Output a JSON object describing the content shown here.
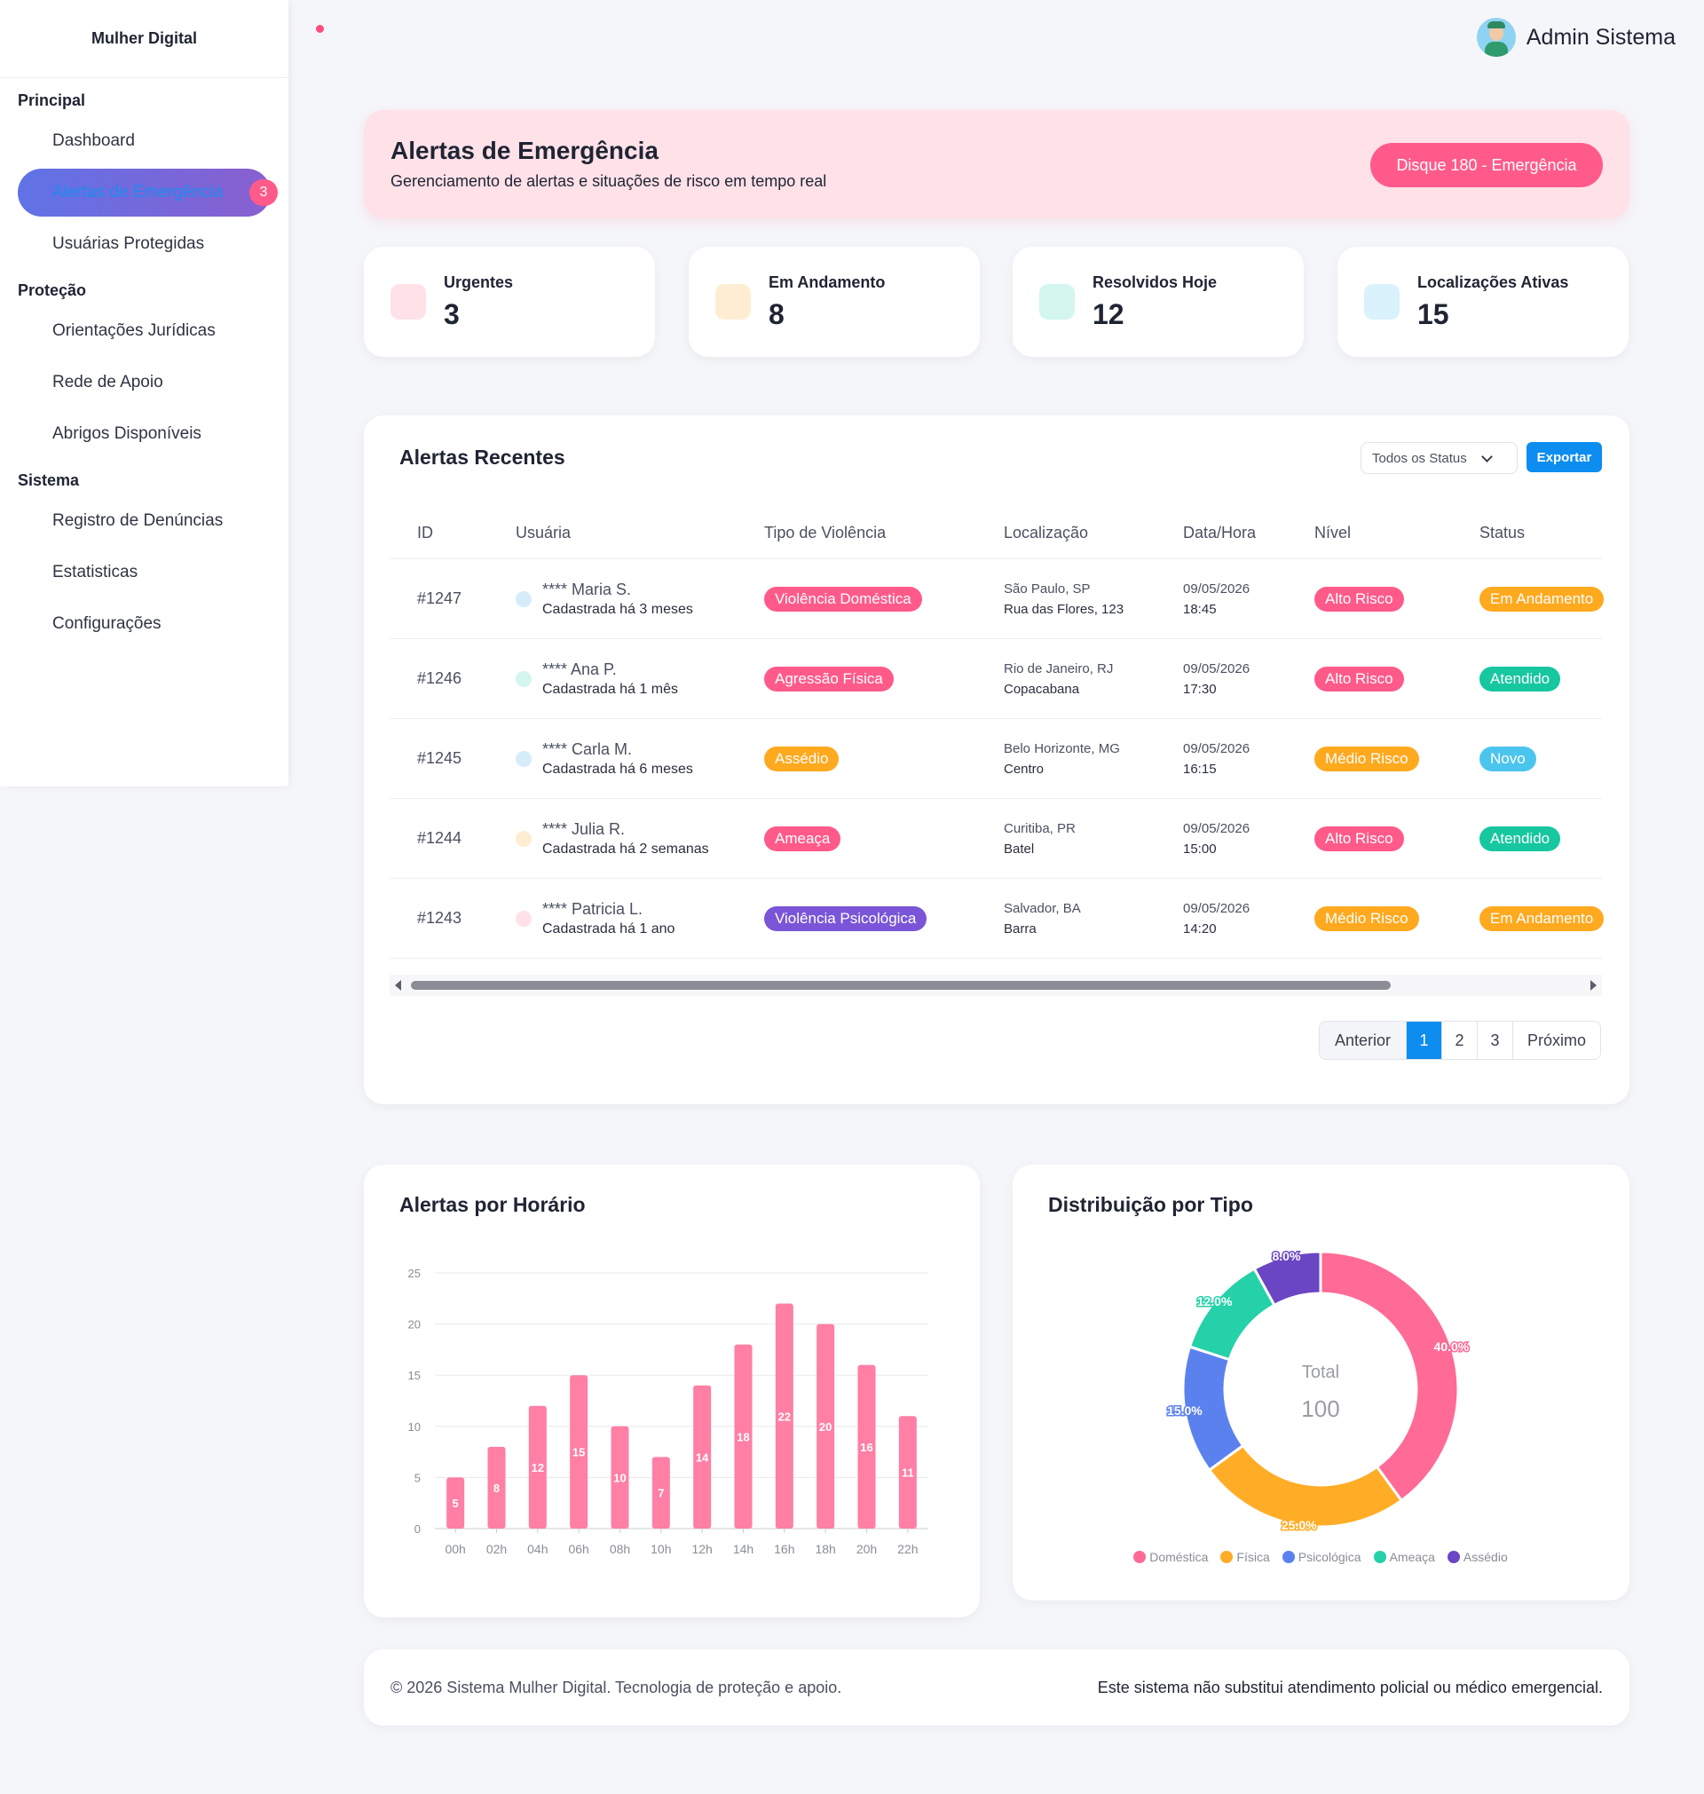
{
  "sidebar": {
    "brand": "Mulher Digital",
    "sections": [
      {
        "title": "Principal",
        "items": [
          {
            "label": "Dashboard"
          },
          {
            "label": "Alertas de Emergência",
            "badge": "3",
            "active": true
          },
          {
            "label": "Usuárias Protegidas"
          }
        ]
      },
      {
        "title": "Proteção",
        "items": [
          {
            "label": "Orientações Jurídicas"
          },
          {
            "label": "Rede de Apoio"
          },
          {
            "label": "Abrigos Disponíveis"
          }
        ]
      },
      {
        "title": "Sistema",
        "items": [
          {
            "label": "Registro de Denúncias"
          },
          {
            "label": "Estatisticas"
          },
          {
            "label": "Configurações"
          }
        ]
      }
    ]
  },
  "header": {
    "user_name": "Admin Sistema"
  },
  "banner": {
    "title": "Alertas de Emergência",
    "subtitle": "Gerenciamento de alertas e situações de risco em tempo real",
    "button": "Disque 180 - Emergência"
  },
  "stats": [
    {
      "label": "Urgentes",
      "value": "3",
      "color": "#ffe1e8"
    },
    {
      "label": "Em Andamento",
      "value": "8",
      "color": "#ffedd3"
    },
    {
      "label": "Resolvidos Hoje",
      "value": "12",
      "color": "#d3f6ee"
    },
    {
      "label": "Localizações Ativas",
      "value": "15",
      "color": "#d9f2fb"
    }
  ],
  "table": {
    "title": "Alertas Recentes",
    "filter": "Todos os Status",
    "export": "Exportar",
    "headers": [
      "ID",
      "Usuária",
      "Tipo de Violência",
      "Localização",
      "Data/Hora",
      "Nível",
      "Status"
    ],
    "rows": [
      {
        "id": "#1247",
        "name": "**** Maria S.",
        "since": "Cadastrada há 3 meses",
        "dot": "#d6ecfb",
        "type": "Violência Doméstica",
        "type_color": "#ff5a8a",
        "loc1": "São Paulo, SP",
        "loc2": "Rua das Flores, 123",
        "date": "09/05/2026",
        "time": "18:45",
        "level": "Alto Risco",
        "level_color": "#ff5a8a",
        "status": "Em Andamento",
        "status_color": "#ffa91f"
      },
      {
        "id": "#1246",
        "name": "**** Ana P.",
        "since": "Cadastrada há 1 mês",
        "dot": "#d3f6ee",
        "type": "Agressão Física",
        "type_color": "#ff5a8a",
        "loc1": "Rio de Janeiro, RJ",
        "loc2": "Copacabana",
        "date": "09/05/2026",
        "time": "17:30",
        "level": "Alto Risco",
        "level_color": "#ff5a8a",
        "status": "Atendido",
        "status_color": "#16c7a0"
      },
      {
        "id": "#1245",
        "name": "**** Carla M.",
        "since": "Cadastrada há 6 meses",
        "dot": "#d6ecfb",
        "type": "Assédio",
        "type_color": "#ffa91f",
        "loc1": "Belo Horizonte, MG",
        "loc2": "Centro",
        "date": "09/05/2026",
        "time": "16:15",
        "level": "Médio Risco",
        "level_color": "#ffa91f",
        "status": "Novo",
        "status_color": "#4cc5ee"
      },
      {
        "id": "#1244",
        "name": "**** Julia R.",
        "since": "Cadastrada há 2 semanas",
        "dot": "#ffedd3",
        "type": "Ameaça",
        "type_color": "#ff5a8a",
        "loc1": "Curitiba, PR",
        "loc2": "Batel",
        "date": "09/05/2026",
        "time": "15:00",
        "level": "Alto Risco",
        "level_color": "#ff5a8a",
        "status": "Atendido",
        "status_color": "#16c7a0"
      },
      {
        "id": "#1243",
        "name": "**** Patricia L.",
        "since": "Cadastrada há 1 ano",
        "dot": "#ffe1e8",
        "type": "Violência Psicológica",
        "type_color": "#7a55d8",
        "loc1": "Salvador, BA",
        "loc2": "Barra",
        "date": "09/05/2026",
        "time": "14:20",
        "level": "Médio Risco",
        "level_color": "#ffa91f",
        "status": "Em Andamento",
        "status_color": "#ffa91f"
      }
    ],
    "pagination": {
      "prev": "Anterior",
      "pages": [
        "1",
        "2",
        "3"
      ],
      "active": "1",
      "next": "Próximo"
    }
  },
  "bar_card": {
    "title": "Alertas por Horário"
  },
  "pie_card": {
    "title": "Distribuição por Tipo",
    "center_label": "Total",
    "center_value": "100"
  },
  "chart_data": [
    {
      "type": "bar",
      "title": "Alertas por Horário",
      "categories": [
        "00h",
        "02h",
        "04h",
        "06h",
        "08h",
        "10h",
        "12h",
        "14h",
        "16h",
        "18h",
        "20h",
        "22h"
      ],
      "values": [
        5,
        8,
        12,
        15,
        10,
        7,
        14,
        18,
        22,
        20,
        16,
        11
      ],
      "yticks": [
        0,
        5,
        10,
        15,
        20,
        25
      ],
      "ylim": [
        0,
        25
      ],
      "grid": true,
      "data_labels": true,
      "color": "#ff7fa5"
    },
    {
      "type": "pie",
      "title": "Distribuição por Tipo",
      "donut": true,
      "labels": [
        "Doméstica",
        "Física",
        "Psicológica",
        "Ameaça",
        "Assédio"
      ],
      "values": [
        40,
        25,
        15,
        12,
        8
      ],
      "value_labels": [
        "40.0%",
        "25.0%",
        "15.0%",
        "12.0%",
        "8.0%"
      ],
      "colors": [
        "#ff6a96",
        "#ffad26",
        "#5b81ef",
        "#24d1a8",
        "#6a45c4"
      ],
      "legend": "bottom"
    }
  ],
  "footer": {
    "left": "© 2026 Sistema Mulher Digital. Tecnologia de proteção e apoio.",
    "right": "Este sistema não substitui atendimento policial ou médico emergencial."
  }
}
